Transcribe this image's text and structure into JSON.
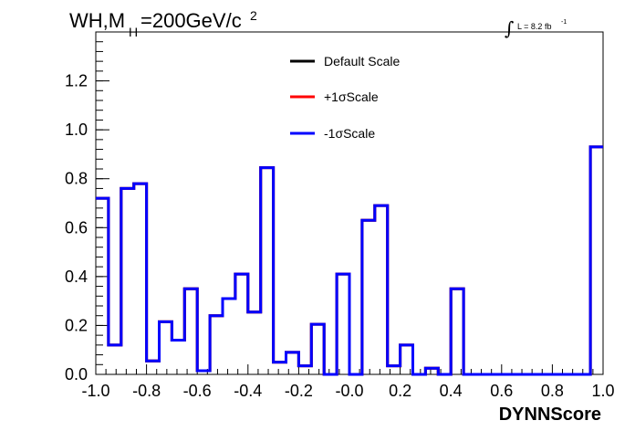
{
  "chart_data": {
    "type": "line",
    "title": "WH,M",
    "title_sub": "H",
    "title_rest": "=200GeV/c",
    "title_sup": "2",
    "lumi_integral": "∫",
    "lumi_text": "L = 8.2 fb",
    "lumi_sup": "-1",
    "xlabel": "DYNNScore",
    "ylabel": "",
    "xlim": [
      -1.0,
      1.0
    ],
    "ylim": [
      0.0,
      1.4
    ],
    "x_ticks": [
      -1.0,
      -0.8,
      -0.6,
      -0.4,
      -0.2,
      0.0,
      0.2,
      0.4,
      0.6,
      0.8,
      1.0
    ],
    "x_tick_labels": [
      "-1.0",
      "-0.8",
      "-0.6",
      "-0.4",
      "-0.2",
      "-0.0",
      "0.2",
      "0.4",
      "0.6",
      "0.8",
      "1.0"
    ],
    "y_ticks": [
      0.0,
      0.2,
      0.4,
      0.6,
      0.8,
      1.0,
      1.2
    ],
    "y_tick_labels": [
      "0.0",
      "0.2",
      "0.4",
      "0.6",
      "0.8",
      "1.0",
      "1.2"
    ],
    "grid": false,
    "legend_position": "top-center",
    "bin_edges": [
      -1.0,
      -0.95,
      -0.9,
      -0.85,
      -0.8,
      -0.75,
      -0.7,
      -0.65,
      -0.6,
      -0.55,
      -0.5,
      -0.45,
      -0.4,
      -0.35,
      -0.3,
      -0.25,
      -0.2,
      -0.15,
      -0.1,
      -0.05,
      0.0,
      0.05,
      0.1,
      0.15,
      0.2,
      0.25,
      0.3,
      0.35,
      0.4,
      0.45,
      0.5,
      0.55,
      0.6,
      0.65,
      0.7,
      0.75,
      0.8,
      0.85,
      0.9,
      0.95,
      1.0
    ],
    "series": [
      {
        "name": "Default Scale",
        "color": "#000000",
        "values": [
          0.72,
          0.12,
          0.76,
          0.78,
          0.055,
          0.215,
          0.14,
          0.35,
          0.015,
          0.24,
          0.31,
          0.41,
          0.255,
          0.845,
          0.05,
          0.09,
          0.035,
          0.205,
          0.0,
          0.41,
          0.0,
          0.63,
          0.69,
          0.035,
          0.12,
          0.0,
          0.025,
          0.0,
          0.35,
          0.0,
          0.0,
          0.0,
          0.0,
          0.0,
          0.0,
          0.0,
          0.0,
          0.0,
          0.0,
          0.93
        ]
      },
      {
        "name": "+1σScale",
        "color": "#ff0000",
        "values": [
          0.72,
          0.12,
          0.76,
          0.78,
          0.055,
          0.215,
          0.14,
          0.35,
          0.015,
          0.24,
          0.31,
          0.41,
          0.255,
          0.845,
          0.05,
          0.09,
          0.035,
          0.205,
          0.0,
          0.41,
          0.0,
          0.63,
          0.69,
          0.035,
          0.12,
          0.0,
          0.025,
          0.0,
          0.35,
          0.0,
          0.0,
          0.0,
          0.0,
          0.0,
          0.0,
          0.0,
          0.0,
          0.0,
          0.0,
          0.93
        ]
      },
      {
        "name": "-1σScale",
        "color": "#0000ff",
        "values": [
          0.72,
          0.12,
          0.76,
          0.78,
          0.055,
          0.215,
          0.14,
          0.35,
          0.015,
          0.24,
          0.31,
          0.41,
          0.255,
          0.845,
          0.05,
          0.09,
          0.035,
          0.205,
          0.0,
          0.41,
          0.0,
          0.63,
          0.69,
          0.035,
          0.12,
          0.0,
          0.025,
          0.0,
          0.35,
          0.0,
          0.0,
          0.0,
          0.0,
          0.0,
          0.0,
          0.0,
          0.0,
          0.0,
          0.0,
          0.93
        ]
      }
    ]
  }
}
